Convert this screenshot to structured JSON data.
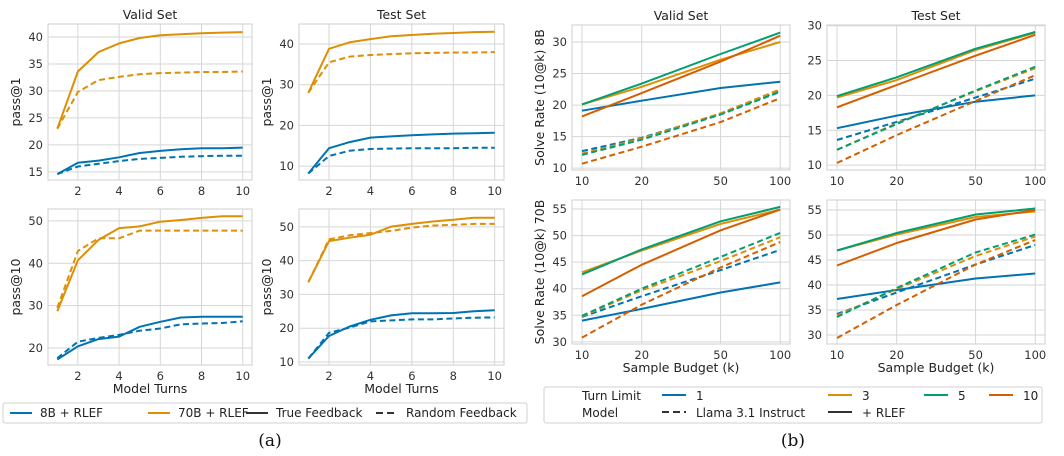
{
  "captions": {
    "a": "(a)",
    "b": "(b)"
  },
  "colors": {
    "blue": "#0173b2",
    "orange": "#de8f05",
    "green": "#029e73",
    "vermillion": "#d55e00",
    "grid": "#d6d6d6"
  },
  "legend_a": [
    {
      "label": "8B + RLEF",
      "color": "#0173b2",
      "style": "solid"
    },
    {
      "label": "70B + RLEF",
      "color": "#de8f05",
      "style": "solid"
    },
    {
      "label": "True Feedback",
      "color": "#333333",
      "style": "solid"
    },
    {
      "label": "Random Feedback",
      "color": "#333333",
      "style": "dashed"
    }
  ],
  "legend_b": {
    "turn_limit_title": "Turn Limit",
    "turn_limits": [
      {
        "label": "1",
        "color": "#0173b2"
      },
      {
        "label": "3",
        "color": "#de8f05"
      },
      {
        "label": "5",
        "color": "#029e73"
      },
      {
        "label": "10",
        "color": "#d55e00"
      }
    ],
    "model_title": "Model",
    "models": [
      {
        "label": "Llama 3.1 Instruct",
        "style": "dashed"
      },
      {
        "label": "+ RLEF",
        "style": "solid"
      }
    ]
  },
  "chart_data": [
    {
      "type": "line",
      "title": "Valid Set",
      "xlabel": "",
      "ylabel": "pass@1",
      "xscale": "linear",
      "xlim": [
        0.55,
        10.45
      ],
      "ylim": [
        13.5,
        42.4
      ],
      "xticks": [
        2,
        4,
        6,
        8,
        10
      ],
      "yticks": [
        15,
        20,
        25,
        30,
        35,
        40
      ],
      "grid": true,
      "x": [
        1,
        2,
        3,
        4,
        5,
        6,
        7,
        8,
        9,
        10
      ],
      "series": [
        {
          "model": "70B + RLEF",
          "feedback": "True Feedback",
          "color": "#de8f05",
          "dash": false,
          "values": [
            23,
            33.6,
            37.2,
            38.8,
            39.8,
            40.3,
            40.5,
            40.7,
            40.8,
            40.9
          ]
        },
        {
          "model": "70B + RLEF",
          "feedback": "Random Feedback",
          "color": "#de8f05",
          "dash": true,
          "values": [
            23,
            29.8,
            32,
            32.6,
            33.1,
            33.3,
            33.4,
            33.5,
            33.5,
            33.6
          ]
        },
        {
          "model": "8B + RLEF",
          "feedback": "True Feedback",
          "color": "#0173b2",
          "dash": false,
          "values": [
            14.6,
            16.7,
            17.1,
            17.7,
            18.5,
            18.9,
            19.2,
            19.4,
            19.4,
            19.5
          ]
        },
        {
          "model": "8B + RLEF",
          "feedback": "Random Feedback",
          "color": "#0173b2",
          "dash": true,
          "values": [
            14.6,
            16,
            16.5,
            17,
            17.4,
            17.6,
            17.8,
            17.9,
            18,
            18
          ]
        }
      ]
    },
    {
      "type": "line",
      "title": "Test Set",
      "xlabel": "",
      "ylabel": "pass@1",
      "xscale": "linear",
      "xlim": [
        0.55,
        10.45
      ],
      "ylim": [
        6.6,
        44.9
      ],
      "xticks": [
        2,
        4,
        6,
        8,
        10
      ],
      "yticks": [
        10,
        20,
        30,
        40
      ],
      "grid": true,
      "x": [
        1,
        2,
        3,
        4,
        5,
        6,
        7,
        8,
        9,
        10
      ],
      "series": [
        {
          "model": "70B + RLEF",
          "feedback": "True Feedback",
          "color": "#de8f05",
          "dash": false,
          "values": [
            28,
            38.8,
            40.4,
            41.2,
            41.9,
            42.2,
            42.5,
            42.7,
            42.9,
            43
          ]
        },
        {
          "model": "70B + RLEF",
          "feedback": "Random Feedback",
          "color": "#de8f05",
          "dash": true,
          "values": [
            28,
            35.5,
            36.9,
            37.3,
            37.5,
            37.7,
            37.8,
            37.9,
            37.9,
            38
          ]
        },
        {
          "model": "8B + RLEF",
          "feedback": "True Feedback",
          "color": "#0173b2",
          "dash": false,
          "values": [
            8.2,
            14.4,
            15.9,
            17,
            17.3,
            17.6,
            17.8,
            18,
            18.1,
            18.2
          ]
        },
        {
          "model": "8B + RLEF",
          "feedback": "Random Feedback",
          "color": "#0173b2",
          "dash": true,
          "values": [
            8.2,
            12.5,
            13.8,
            14.2,
            14.3,
            14.4,
            14.4,
            14.4,
            14.5,
            14.5
          ]
        }
      ]
    },
    {
      "type": "line",
      "title": "",
      "xlabel": "Model Turns",
      "ylabel": "pass@10",
      "xscale": "linear",
      "xlim": [
        0.55,
        10.45
      ],
      "ylim": [
        16,
        52.8
      ],
      "xticks": [
        2,
        4,
        6,
        8,
        10
      ],
      "yticks": [
        20,
        30,
        40,
        50
      ],
      "grid": true,
      "x": [
        1,
        2,
        3,
        4,
        5,
        6,
        7,
        8,
        9,
        10
      ],
      "series": [
        {
          "model": "70B + RLEF",
          "feedback": "True Feedback",
          "color": "#de8f05",
          "dash": false,
          "values": [
            28.7,
            40.7,
            45.5,
            48.3,
            48.7,
            49.8,
            50.2,
            50.7,
            51.1,
            51.1
          ]
        },
        {
          "model": "70B + RLEF",
          "feedback": "Random Feedback",
          "color": "#de8f05",
          "dash": true,
          "values": [
            29.5,
            42.9,
            45.9,
            45.9,
            47.7,
            47.7,
            47.7,
            47.7,
            47.7,
            47.7
          ]
        },
        {
          "model": "8B + RLEF",
          "feedback": "True Feedback",
          "color": "#0173b2",
          "dash": false,
          "values": [
            17.3,
            20.4,
            22.1,
            22.7,
            25,
            26.2,
            27.2,
            27.4,
            27.4,
            27.4
          ]
        },
        {
          "model": "8B + RLEF",
          "feedback": "Random Feedback",
          "color": "#0173b2",
          "dash": true,
          "values": [
            17.6,
            21.5,
            22.4,
            23.1,
            24.1,
            24.6,
            25.6,
            25.8,
            25.9,
            26.3
          ]
        }
      ]
    },
    {
      "type": "line",
      "title": "",
      "xlabel": "Model Turns",
      "ylabel": "pass@10",
      "xscale": "linear",
      "xlim": [
        0.55,
        10.45
      ],
      "ylim": [
        9.1,
        55.3
      ],
      "xticks": [
        2,
        4,
        6,
        8,
        10
      ],
      "yticks": [
        10,
        20,
        30,
        40,
        50
      ],
      "grid": true,
      "x": [
        1,
        2,
        3,
        4,
        5,
        6,
        7,
        8,
        9,
        10
      ],
      "series": [
        {
          "model": "70B + RLEF",
          "feedback": "True Feedback",
          "color": "#de8f05",
          "dash": false,
          "values": [
            33.6,
            45.8,
            46.8,
            47.7,
            50.1,
            50.9,
            51.6,
            52.1,
            52.7,
            52.7
          ]
        },
        {
          "model": "70B + RLEF",
          "feedback": "Random Feedback",
          "color": "#de8f05",
          "dash": true,
          "values": [
            33.6,
            46.3,
            47.5,
            48.2,
            48.8,
            49.8,
            50.4,
            50.6,
            50.9,
            50.9
          ]
        },
        {
          "model": "8B + RLEF",
          "feedback": "True Feedback",
          "color": "#0173b2",
          "dash": false,
          "values": [
            11,
            17.7,
            20.5,
            22.5,
            23.8,
            24.4,
            24.4,
            24.5,
            25,
            25.3
          ]
        },
        {
          "model": "8B + RLEF",
          "feedback": "Random Feedback",
          "color": "#0173b2",
          "dash": true,
          "values": [
            11,
            18.6,
            20.2,
            22,
            22.3,
            22.6,
            22.6,
            22.9,
            23.1,
            23.2
          ]
        }
      ]
    },
    {
      "type": "line",
      "title": "Valid Set",
      "xlabel": "",
      "ylabel": "Solve Rate (10@k) 8B",
      "xscale": "log",
      "xlim": [
        8.9,
        112
      ],
      "ylim": [
        9.7,
        32.7
      ],
      "xticks": [
        10,
        20,
        50,
        100
      ],
      "yticks": [
        10,
        15,
        20,
        25,
        30
      ],
      "grid": true,
      "x": [
        10,
        20,
        50,
        100
      ],
      "series": [
        {
          "turn_limit": "1",
          "model": "+ RLEF",
          "color": "#0173b2",
          "dash": false,
          "values": [
            19.1,
            20.7,
            22.7,
            23.7
          ]
        },
        {
          "turn_limit": "3",
          "model": "+ RLEF",
          "color": "#de8f05",
          "dash": false,
          "values": [
            20.1,
            22.9,
            27.2,
            30.0
          ]
        },
        {
          "turn_limit": "5",
          "model": "+ RLEF",
          "color": "#029e73",
          "dash": false,
          "values": [
            20.1,
            23.4,
            28.1,
            31.5
          ]
        },
        {
          "turn_limit": "10",
          "model": "+ RLEF",
          "color": "#d55e00",
          "dash": false,
          "values": [
            18.2,
            21.9,
            26.9,
            31.0
          ]
        },
        {
          "turn_limit": "1",
          "model": "Llama 3.1 Instruct",
          "color": "#0173b2",
          "dash": true,
          "values": [
            12.7,
            14.8,
            18.6,
            22.3
          ]
        },
        {
          "turn_limit": "3",
          "model": "Llama 3.1 Instruct",
          "color": "#de8f05",
          "dash": true,
          "values": [
            12.3,
            14.7,
            18.7,
            22.5
          ]
        },
        {
          "turn_limit": "5",
          "model": "Llama 3.1 Instruct",
          "color": "#029e73",
          "dash": true,
          "values": [
            12.1,
            14.5,
            18.5,
            22.1
          ]
        },
        {
          "turn_limit": "10",
          "model": "Llama 3.1 Instruct",
          "color": "#d55e00",
          "dash": true,
          "values": [
            10.7,
            13.4,
            17.3,
            21.1
          ]
        }
      ]
    },
    {
      "type": "line",
      "title": "Test Set",
      "xlabel": "",
      "ylabel": "",
      "xscale": "log",
      "xlim": [
        8.9,
        112
      ],
      "ylim": [
        9.3,
        30.1
      ],
      "xticks": [
        10,
        20,
        50,
        100
      ],
      "yticks": [
        10,
        15,
        20,
        25,
        30
      ],
      "grid": true,
      "x": [
        10,
        20,
        50,
        100
      ],
      "series": [
        {
          "turn_limit": "1",
          "model": "+ RLEF",
          "color": "#0173b2",
          "dash": false,
          "values": [
            15.3,
            17.1,
            19.1,
            20.0
          ]
        },
        {
          "turn_limit": "3",
          "model": "+ RLEF",
          "color": "#de8f05",
          "dash": false,
          "values": [
            19.7,
            22.2,
            26.5,
            29.0
          ]
        },
        {
          "turn_limit": "5",
          "model": "+ RLEF",
          "color": "#029e73",
          "dash": false,
          "values": [
            19.9,
            22.6,
            26.7,
            29.1
          ]
        },
        {
          "turn_limit": "10",
          "model": "+ RLEF",
          "color": "#d55e00",
          "dash": false,
          "values": [
            18.3,
            21.5,
            25.7,
            28.7
          ]
        },
        {
          "turn_limit": "1",
          "model": "Llama 3.1 Instruct",
          "color": "#0173b2",
          "dash": true,
          "values": [
            13.6,
            16.2,
            19.7,
            22.4
          ]
        },
        {
          "turn_limit": "3",
          "model": "Llama 3.1 Instruct",
          "color": "#de8f05",
          "dash": true,
          "values": [
            12.2,
            16.0,
            20.6,
            23.9
          ]
        },
        {
          "turn_limit": "5",
          "model": "Llama 3.1 Instruct",
          "color": "#029e73",
          "dash": true,
          "values": [
            12.2,
            15.9,
            20.7,
            24.1
          ]
        },
        {
          "turn_limit": "10",
          "model": "Llama 3.1 Instruct",
          "color": "#d55e00",
          "dash": true,
          "values": [
            10.3,
            14.3,
            19.2,
            22.9
          ]
        }
      ]
    },
    {
      "type": "line",
      "title": "",
      "xlabel": "Sample Budget (k)",
      "ylabel": "Solve Rate (10@k) 70B",
      "xscale": "log",
      "xlim": [
        8.9,
        112
      ],
      "ylim": [
        29.6,
        56.7
      ],
      "xticks": [
        10,
        20,
        50,
        100
      ],
      "yticks": [
        30,
        35,
        40,
        45,
        50,
        55
      ],
      "grid": true,
      "x": [
        10,
        20,
        50,
        100
      ],
      "series": [
        {
          "turn_limit": "1",
          "model": "+ RLEF",
          "color": "#0173b2",
          "dash": false,
          "values": [
            34.0,
            36.2,
            39.3,
            41.2
          ]
        },
        {
          "turn_limit": "3",
          "model": "+ RLEF",
          "color": "#de8f05",
          "dash": false,
          "values": [
            43.1,
            47.2,
            52.2,
            54.9
          ]
        },
        {
          "turn_limit": "5",
          "model": "+ RLEF",
          "color": "#029e73",
          "dash": false,
          "values": [
            42.7,
            47.4,
            52.7,
            55.4
          ]
        },
        {
          "turn_limit": "10",
          "model": "+ RLEF",
          "color": "#d55e00",
          "dash": false,
          "values": [
            38.6,
            44.5,
            51.0,
            54.9
          ]
        },
        {
          "turn_limit": "1",
          "model": "Llama 3.1 Instruct",
          "color": "#0173b2",
          "dash": true,
          "values": [
            34.7,
            38.6,
            43.5,
            47.3
          ]
        },
        {
          "turn_limit": "3",
          "model": "Llama 3.1 Instruct",
          "color": "#de8f05",
          "dash": true,
          "values": [
            34.8,
            39.7,
            45.2,
            49.7
          ]
        },
        {
          "turn_limit": "5",
          "model": "Llama 3.1 Instruct",
          "color": "#029e73",
          "dash": true,
          "values": [
            34.9,
            40.0,
            46.0,
            50.5
          ]
        },
        {
          "turn_limit": "10",
          "model": "Llama 3.1 Instruct",
          "color": "#d55e00",
          "dash": true,
          "values": [
            30.8,
            37.0,
            44.0,
            48.8
          ]
        }
      ]
    },
    {
      "type": "line",
      "title": "",
      "xlabel": "Sample Budget (k)",
      "ylabel": "",
      "xscale": "log",
      "xlim": [
        8.9,
        112
      ],
      "ylim": [
        28.2,
        57
      ],
      "xticks": [
        10,
        20,
        50,
        100
      ],
      "yticks": [
        30,
        35,
        40,
        45,
        50,
        55
      ],
      "grid": true,
      "x": [
        10,
        20,
        50,
        100
      ],
      "series": [
        {
          "turn_limit": "1",
          "model": "+ RLEF",
          "color": "#0173b2",
          "dash": false,
          "values": [
            37.2,
            39.0,
            41.3,
            42.3
          ]
        },
        {
          "turn_limit": "3",
          "model": "+ RLEF",
          "color": "#de8f05",
          "dash": false,
          "values": [
            46.9,
            50.1,
            53.6,
            54.7
          ]
        },
        {
          "turn_limit": "5",
          "model": "+ RLEF",
          "color": "#029e73",
          "dash": false,
          "values": [
            46.9,
            50.4,
            54.1,
            55.3
          ]
        },
        {
          "turn_limit": "10",
          "model": "+ RLEF",
          "color": "#d55e00",
          "dash": false,
          "values": [
            43.9,
            48.4,
            53.1,
            55.0
          ]
        },
        {
          "turn_limit": "1",
          "model": "Llama 3.1 Instruct",
          "color": "#0173b2",
          "dash": true,
          "values": [
            34.2,
            38.5,
            44.1,
            48.0
          ]
        },
        {
          "turn_limit": "3",
          "model": "Llama 3.1 Instruct",
          "color": "#de8f05",
          "dash": true,
          "values": [
            33.9,
            39.2,
            45.8,
            49.7
          ]
        },
        {
          "turn_limit": "5",
          "model": "Llama 3.1 Instruct",
          "color": "#029e73",
          "dash": true,
          "values": [
            33.6,
            39.4,
            46.5,
            50.1
          ]
        },
        {
          "turn_limit": "10",
          "model": "Llama 3.1 Instruct",
          "color": "#d55e00",
          "dash": true,
          "values": [
            29.4,
            36.0,
            44.1,
            49.0
          ]
        }
      ]
    }
  ]
}
